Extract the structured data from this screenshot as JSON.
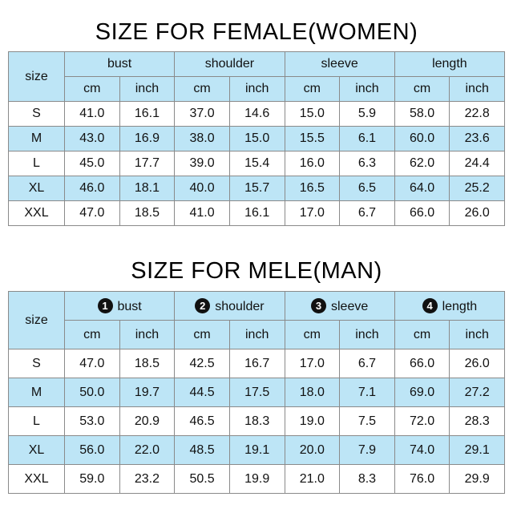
{
  "women": {
    "title": "SIZE FOR FEMALE(WOMEN)",
    "size_header": "size",
    "groups": [
      "bust",
      "shoulder",
      "sleeve",
      "length"
    ],
    "units": [
      "cm",
      "inch"
    ],
    "rows": [
      {
        "size": "S",
        "values": [
          "41.0",
          "16.1",
          "37.0",
          "14.6",
          "15.0",
          "5.9",
          "58.0",
          "22.8"
        ]
      },
      {
        "size": "M",
        "values": [
          "43.0",
          "16.9",
          "38.0",
          "15.0",
          "15.5",
          "6.1",
          "60.0",
          "23.6"
        ]
      },
      {
        "size": "L",
        "values": [
          "45.0",
          "17.7",
          "39.0",
          "15.4",
          "16.0",
          "6.3",
          "62.0",
          "24.4"
        ]
      },
      {
        "size": "XL",
        "values": [
          "46.0",
          "18.1",
          "40.0",
          "15.7",
          "16.5",
          "6.5",
          "64.0",
          "25.2"
        ]
      },
      {
        "size": "XXL",
        "values": [
          "47.0",
          "18.5",
          "41.0",
          "16.1",
          "17.0",
          "6.7",
          "66.0",
          "26.0"
        ]
      }
    ]
  },
  "men": {
    "title": "SIZE FOR MELE(MAN)",
    "size_header": "size",
    "groups": [
      {
        "number": "1",
        "label": "bust"
      },
      {
        "number": "2",
        "label": "shoulder"
      },
      {
        "number": "3",
        "label": "sleeve"
      },
      {
        "number": "4",
        "label": "length"
      }
    ],
    "units": [
      "cm",
      "inch"
    ],
    "rows": [
      {
        "size": "S",
        "values": [
          "47.0",
          "18.5",
          "42.5",
          "16.7",
          "17.0",
          "6.7",
          "66.0",
          "26.0"
        ]
      },
      {
        "size": "M",
        "values": [
          "50.0",
          "19.7",
          "44.5",
          "17.5",
          "18.0",
          "7.1",
          "69.0",
          "27.2"
        ]
      },
      {
        "size": "L",
        "values": [
          "53.0",
          "20.9",
          "46.5",
          "18.3",
          "19.0",
          "7.5",
          "72.0",
          "28.3"
        ]
      },
      {
        "size": "XL",
        "values": [
          "56.0",
          "22.0",
          "48.5",
          "19.1",
          "20.0",
          "7.9",
          "74.0",
          "29.1"
        ]
      },
      {
        "size": "XXL",
        "values": [
          "59.0",
          "23.2",
          "50.5",
          "19.9",
          "21.0",
          "8.3",
          "76.0",
          "29.9"
        ]
      }
    ]
  },
  "colors": {
    "header_fill": "#bde5f6",
    "row_alt_fill": "#bde5f6",
    "row_fill": "#ffffff",
    "border": "#8a8a8a"
  }
}
